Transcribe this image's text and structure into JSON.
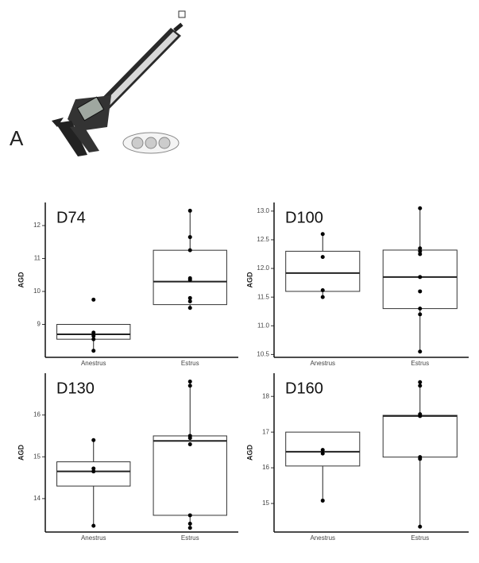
{
  "panel_label": "A",
  "chart_data": [
    {
      "type": "box",
      "title": "D74",
      "y_label": "AGD",
      "categories": [
        "Anestrus",
        "Estrus"
      ],
      "boxes": [
        {
          "whisker_low": 8.2,
          "q1": 8.55,
          "median": 8.7,
          "q3": 9.0,
          "whisker_high": 9.0
        },
        {
          "whisker_low": 9.5,
          "q1": 9.6,
          "median": 10.3,
          "q3": 11.25,
          "whisker_high": 12.45
        }
      ],
      "points": [
        [
          9.75,
          8.75,
          8.65,
          8.55,
          8.2
        ],
        [
          12.45,
          11.65,
          11.25,
          10.4,
          10.35,
          9.8,
          9.7,
          9.5
        ]
      ],
      "ylim": [
        8.0,
        12.7
      ],
      "yticks": [
        9,
        10,
        11,
        12
      ]
    },
    {
      "type": "box",
      "title": "D100",
      "y_label": "AGD",
      "categories": [
        "Anestrus",
        "Estrus"
      ],
      "boxes": [
        {
          "whisker_low": 11.5,
          "q1": 11.6,
          "median": 11.92,
          "q3": 12.3,
          "whisker_high": 12.6
        },
        {
          "whisker_low": 10.55,
          "q1": 11.3,
          "median": 11.85,
          "q3": 12.32,
          "whisker_high": 13.05
        }
      ],
      "points": [
        [
          12.6,
          12.2,
          11.62,
          11.5
        ],
        [
          13.05,
          12.35,
          12.3,
          12.25,
          11.85,
          11.6,
          11.3,
          11.2,
          10.55
        ]
      ],
      "ylim": [
        10.45,
        13.15
      ],
      "yticks": [
        10.5,
        {
          "value": 11,
          "label": "11.0"
        },
        11.5,
        {
          "value": 12,
          "label": "12.0"
        },
        12.5,
        {
          "value": 13,
          "label": "13.0"
        }
      ]
    },
    {
      "type": "box",
      "title": "D130",
      "y_label": "AGD",
      "categories": [
        "Anestrus",
        "Estrus"
      ],
      "boxes": [
        {
          "whisker_low": 13.35,
          "q1": 14.3,
          "median": 14.65,
          "q3": 14.88,
          "whisker_high": 15.4
        },
        {
          "whisker_low": 13.3,
          "q1": 13.6,
          "median": 15.38,
          "q3": 15.5,
          "whisker_high": 16.8
        }
      ],
      "points": [
        [
          15.4,
          14.72,
          14.65,
          13.35
        ],
        [
          16.8,
          16.7,
          15.5,
          15.45,
          15.3,
          13.6,
          13.4,
          13.3
        ]
      ],
      "ylim": [
        13.2,
        17.0
      ],
      "yticks": [
        14,
        15,
        16
      ]
    },
    {
      "type": "box",
      "title": "D160",
      "y_label": "AGD",
      "categories": [
        "Anestrus",
        "Estrus"
      ],
      "boxes": [
        {
          "whisker_low": 15.08,
          "q1": 16.05,
          "median": 16.45,
          "q3": 17.0,
          "whisker_high": 17.0
        },
        {
          "whisker_low": 14.35,
          "q1": 16.3,
          "median": 17.45,
          "q3": 17.47,
          "whisker_high": 18.4
        }
      ],
      "points": [
        [
          16.5,
          16.4,
          15.08
        ],
        [
          18.4,
          18.3,
          17.5,
          17.45,
          16.3,
          16.25,
          14.35
        ]
      ],
      "ylim": [
        14.2,
        18.65
      ],
      "yticks": [
        15,
        16,
        17,
        18
      ]
    }
  ]
}
